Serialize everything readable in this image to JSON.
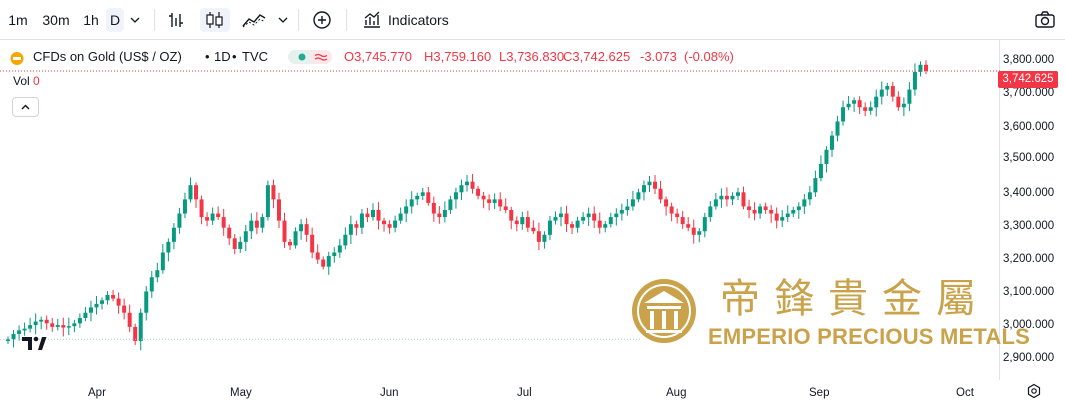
{
  "toolbar": {
    "intervals": [
      "1m",
      "30m",
      "1h",
      "D"
    ],
    "active_interval": "D",
    "indicators_label": "Indicators",
    "icons": [
      "chevron-down-icon",
      "bar-chart-icon",
      "candles-icon",
      "area-chart-icon",
      "chevron-down-icon",
      "plus-circle-icon",
      "indicators-icon",
      "camera-icon"
    ]
  },
  "legend": {
    "symbol": "CFDs on Gold (US$ / OZ)",
    "timeframe": "1D",
    "exchange": "TVC",
    "sep": "•",
    "open_label": "O",
    "open": "3,745.770",
    "high_label": "H",
    "high": "3,759.160",
    "low_label": "L",
    "low": "3,736.830",
    "close_label": "C",
    "close": "3,742.625",
    "change": "-3.073",
    "change_pct": "(-0.08%)",
    "volume_label": "Vol",
    "volume": "0"
  },
  "price_axis": {
    "ticks": [
      "3,800.000",
      "3,700.000",
      "3,600.000",
      "3,500.000",
      "3,400.000",
      "3,300.000",
      "3,200.000",
      "3,100.000",
      "3,000.000",
      "2,900.000"
    ],
    "last_price": "3,742.625"
  },
  "time_axis": {
    "ticks": [
      "Apr",
      "May",
      "Jun",
      "Jul",
      "Aug",
      "Sep",
      "Oct"
    ]
  },
  "watermark": {
    "chinese": "帝鋒貴金屬",
    "english": "EMPERIO PRECIOUS METALS"
  },
  "colors": {
    "up": "#089981",
    "down": "#f23645",
    "watermark": "#c9a24a"
  },
  "chart_data": {
    "type": "candlestick",
    "title": "CFDs on Gold (US$ / OZ)",
    "ylim": [
      2870,
      3830
    ],
    "x_ticks": [
      "Apr",
      "May",
      "Jun",
      "Jul",
      "Aug",
      "Sep",
      "Oct"
    ],
    "series": [
      {
        "name": "CFDs on Gold (US$ / OZ)",
        "closes": [
          2985,
          3000,
          3010,
          3015,
          3025,
          3035,
          3040,
          3030,
          3020,
          3025,
          3018,
          3022,
          3030,
          3045,
          3060,
          3075,
          3085,
          3095,
          3110,
          3100,
          3080,
          3060,
          3020,
          2980,
          3060,
          3120,
          3160,
          3180,
          3230,
          3260,
          3300,
          3340,
          3380,
          3420,
          3380,
          3330,
          3320,
          3340,
          3330,
          3300,
          3270,
          3240,
          3260,
          3290,
          3320,
          3300,
          3330,
          3420,
          3380,
          3320,
          3260,
          3250,
          3290,
          3310,
          3280,
          3230,
          3210,
          3190,
          3220,
          3230,
          3250,
          3280,
          3310,
          3300,
          3340,
          3330,
          3350,
          3320,
          3310,
          3300,
          3320,
          3340,
          3360,
          3380,
          3390,
          3400,
          3370,
          3340,
          3330,
          3350,
          3380,
          3400,
          3420,
          3430,
          3410,
          3390,
          3380,
          3370,
          3380,
          3360,
          3350,
          3320,
          3310,
          3330,
          3300,
          3290,
          3260,
          3280,
          3320,
          3330,
          3340,
          3310,
          3300,
          3320,
          3330,
          3340,
          3320,
          3300,
          3310,
          3330,
          3340,
          3350,
          3360,
          3380,
          3400,
          3420,
          3430,
          3410,
          3380,
          3360,
          3340,
          3330,
          3310,
          3300,
          3280,
          3290,
          3330,
          3360,
          3380,
          3390,
          3380,
          3390,
          3400,
          3360,
          3350,
          3340,
          3360,
          3350,
          3340,
          3320,
          3330,
          3340,
          3350,
          3360,
          3380,
          3400,
          3440,
          3480,
          3520,
          3560,
          3600,
          3640,
          3650,
          3660,
          3640,
          3630,
          3640,
          3670,
          3690,
          3700,
          3670,
          3640,
          3650,
          3690,
          3740,
          3760,
          3742.625
        ]
      }
    ]
  }
}
